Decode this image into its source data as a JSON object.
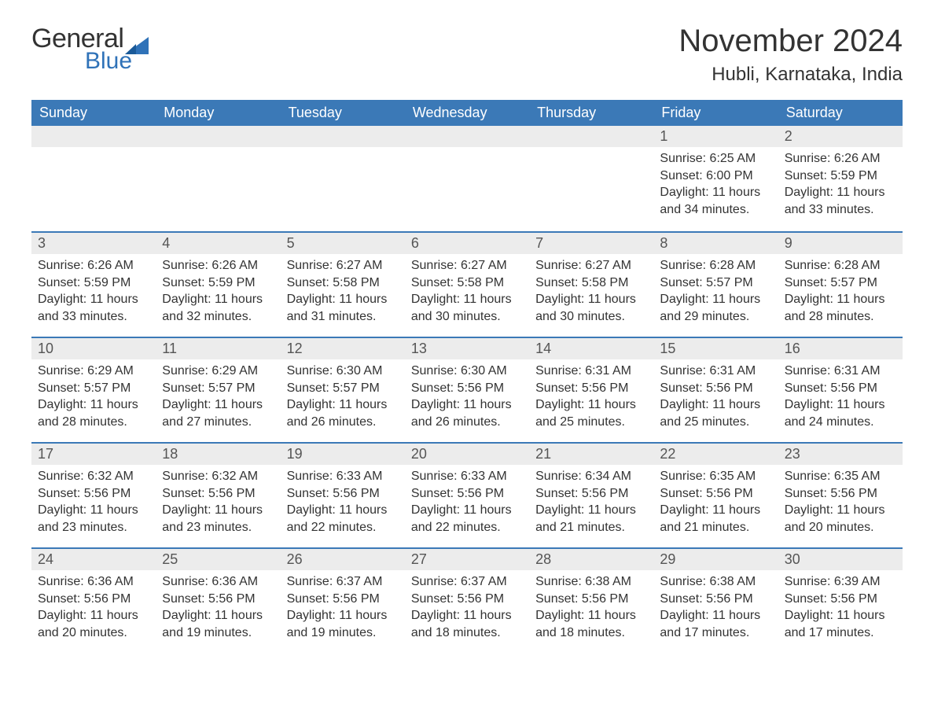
{
  "brand": {
    "part1": "General",
    "part2": "Blue"
  },
  "title": "November 2024",
  "location": "Hubli, Karnataka, India",
  "colors": {
    "header_bg": "#3b79b7",
    "header_text": "#ffffff",
    "daynum_bg": "#ececec",
    "row_border": "#3b79b7",
    "text": "#333333",
    "brand_blue": "#2f72b8",
    "background": "#ffffff"
  },
  "typography": {
    "title_fontsize": 40,
    "location_fontsize": 24,
    "header_fontsize": 18,
    "body_fontsize": 16
  },
  "calendar": {
    "type": "table",
    "columns": [
      "Sunday",
      "Monday",
      "Tuesday",
      "Wednesday",
      "Thursday",
      "Friday",
      "Saturday"
    ],
    "leading_blanks": 5,
    "days": [
      {
        "n": "1",
        "sunrise": "6:25 AM",
        "sunset": "6:00 PM",
        "daylight": "11 hours and 34 minutes."
      },
      {
        "n": "2",
        "sunrise": "6:26 AM",
        "sunset": "5:59 PM",
        "daylight": "11 hours and 33 minutes."
      },
      {
        "n": "3",
        "sunrise": "6:26 AM",
        "sunset": "5:59 PM",
        "daylight": "11 hours and 33 minutes."
      },
      {
        "n": "4",
        "sunrise": "6:26 AM",
        "sunset": "5:59 PM",
        "daylight": "11 hours and 32 minutes."
      },
      {
        "n": "5",
        "sunrise": "6:27 AM",
        "sunset": "5:58 PM",
        "daylight": "11 hours and 31 minutes."
      },
      {
        "n": "6",
        "sunrise": "6:27 AM",
        "sunset": "5:58 PM",
        "daylight": "11 hours and 30 minutes."
      },
      {
        "n": "7",
        "sunrise": "6:27 AM",
        "sunset": "5:58 PM",
        "daylight": "11 hours and 30 minutes."
      },
      {
        "n": "8",
        "sunrise": "6:28 AM",
        "sunset": "5:57 PM",
        "daylight": "11 hours and 29 minutes."
      },
      {
        "n": "9",
        "sunrise": "6:28 AM",
        "sunset": "5:57 PM",
        "daylight": "11 hours and 28 minutes."
      },
      {
        "n": "10",
        "sunrise": "6:29 AM",
        "sunset": "5:57 PM",
        "daylight": "11 hours and 28 minutes."
      },
      {
        "n": "11",
        "sunrise": "6:29 AM",
        "sunset": "5:57 PM",
        "daylight": "11 hours and 27 minutes."
      },
      {
        "n": "12",
        "sunrise": "6:30 AM",
        "sunset": "5:57 PM",
        "daylight": "11 hours and 26 minutes."
      },
      {
        "n": "13",
        "sunrise": "6:30 AM",
        "sunset": "5:56 PM",
        "daylight": "11 hours and 26 minutes."
      },
      {
        "n": "14",
        "sunrise": "6:31 AM",
        "sunset": "5:56 PM",
        "daylight": "11 hours and 25 minutes."
      },
      {
        "n": "15",
        "sunrise": "6:31 AM",
        "sunset": "5:56 PM",
        "daylight": "11 hours and 25 minutes."
      },
      {
        "n": "16",
        "sunrise": "6:31 AM",
        "sunset": "5:56 PM",
        "daylight": "11 hours and 24 minutes."
      },
      {
        "n": "17",
        "sunrise": "6:32 AM",
        "sunset": "5:56 PM",
        "daylight": "11 hours and 23 minutes."
      },
      {
        "n": "18",
        "sunrise": "6:32 AM",
        "sunset": "5:56 PM",
        "daylight": "11 hours and 23 minutes."
      },
      {
        "n": "19",
        "sunrise": "6:33 AM",
        "sunset": "5:56 PM",
        "daylight": "11 hours and 22 minutes."
      },
      {
        "n": "20",
        "sunrise": "6:33 AM",
        "sunset": "5:56 PM",
        "daylight": "11 hours and 22 minutes."
      },
      {
        "n": "21",
        "sunrise": "6:34 AM",
        "sunset": "5:56 PM",
        "daylight": "11 hours and 21 minutes."
      },
      {
        "n": "22",
        "sunrise": "6:35 AM",
        "sunset": "5:56 PM",
        "daylight": "11 hours and 21 minutes."
      },
      {
        "n": "23",
        "sunrise": "6:35 AM",
        "sunset": "5:56 PM",
        "daylight": "11 hours and 20 minutes."
      },
      {
        "n": "24",
        "sunrise": "6:36 AM",
        "sunset": "5:56 PM",
        "daylight": "11 hours and 20 minutes."
      },
      {
        "n": "25",
        "sunrise": "6:36 AM",
        "sunset": "5:56 PM",
        "daylight": "11 hours and 19 minutes."
      },
      {
        "n": "26",
        "sunrise": "6:37 AM",
        "sunset": "5:56 PM",
        "daylight": "11 hours and 19 minutes."
      },
      {
        "n": "27",
        "sunrise": "6:37 AM",
        "sunset": "5:56 PM",
        "daylight": "11 hours and 18 minutes."
      },
      {
        "n": "28",
        "sunrise": "6:38 AM",
        "sunset": "5:56 PM",
        "daylight": "11 hours and 18 minutes."
      },
      {
        "n": "29",
        "sunrise": "6:38 AM",
        "sunset": "5:56 PM",
        "daylight": "11 hours and 17 minutes."
      },
      {
        "n": "30",
        "sunrise": "6:39 AM",
        "sunset": "5:56 PM",
        "daylight": "11 hours and 17 minutes."
      }
    ],
    "labels": {
      "sunrise": "Sunrise:",
      "sunset": "Sunset:",
      "daylight": "Daylight:"
    }
  }
}
